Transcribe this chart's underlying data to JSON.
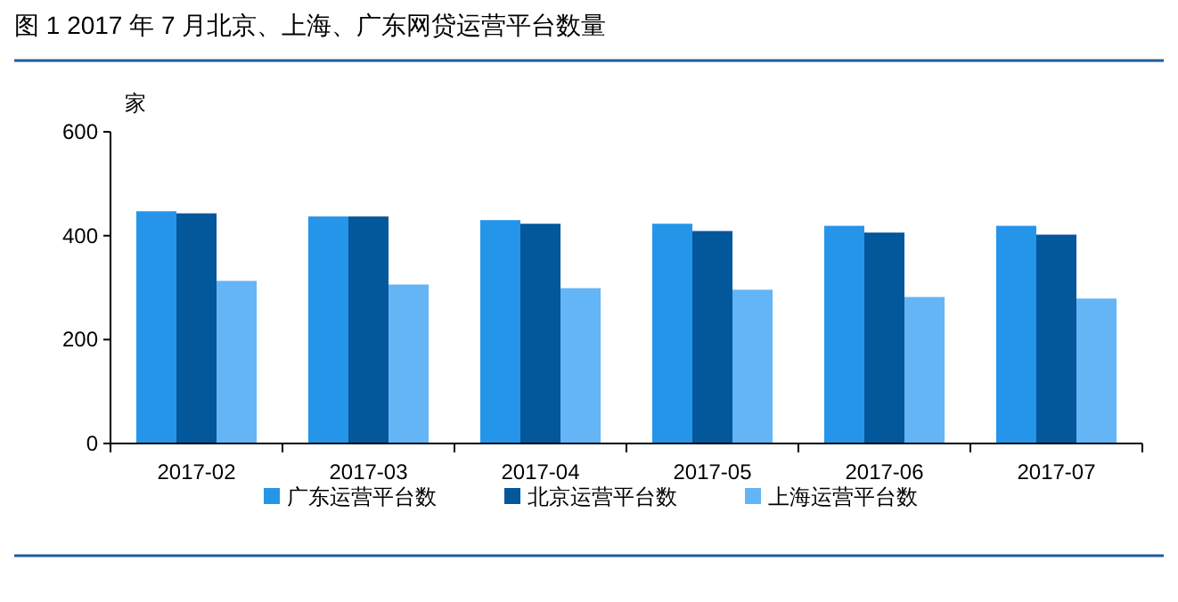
{
  "chart_data": {
    "type": "bar",
    "title": "图 1   2017 年 7 月北京、上海、广东网贷运营平台数量",
    "ylabel": "家",
    "categories": [
      "2017-02",
      "2017-03",
      "2017-04",
      "2017-05",
      "2017-06",
      "2017-07"
    ],
    "series": [
      {
        "name": "广东运营平台数",
        "color": "#2595ea",
        "values": [
          447,
          437,
          430,
          423,
          419,
          419
        ]
      },
      {
        "name": "北京运营平台数",
        "color": "#03579b",
        "values": [
          443,
          437,
          423,
          409,
          406,
          402
        ]
      },
      {
        "name": "上海运营平台数",
        "color": "#64b5f6",
        "values": [
          313,
          306,
          299,
          296,
          282,
          279
        ]
      }
    ],
    "ylim": [
      0,
      600
    ],
    "yticks": [
      0,
      200,
      400,
      600
    ],
    "grid": false,
    "legend": "bottom"
  }
}
